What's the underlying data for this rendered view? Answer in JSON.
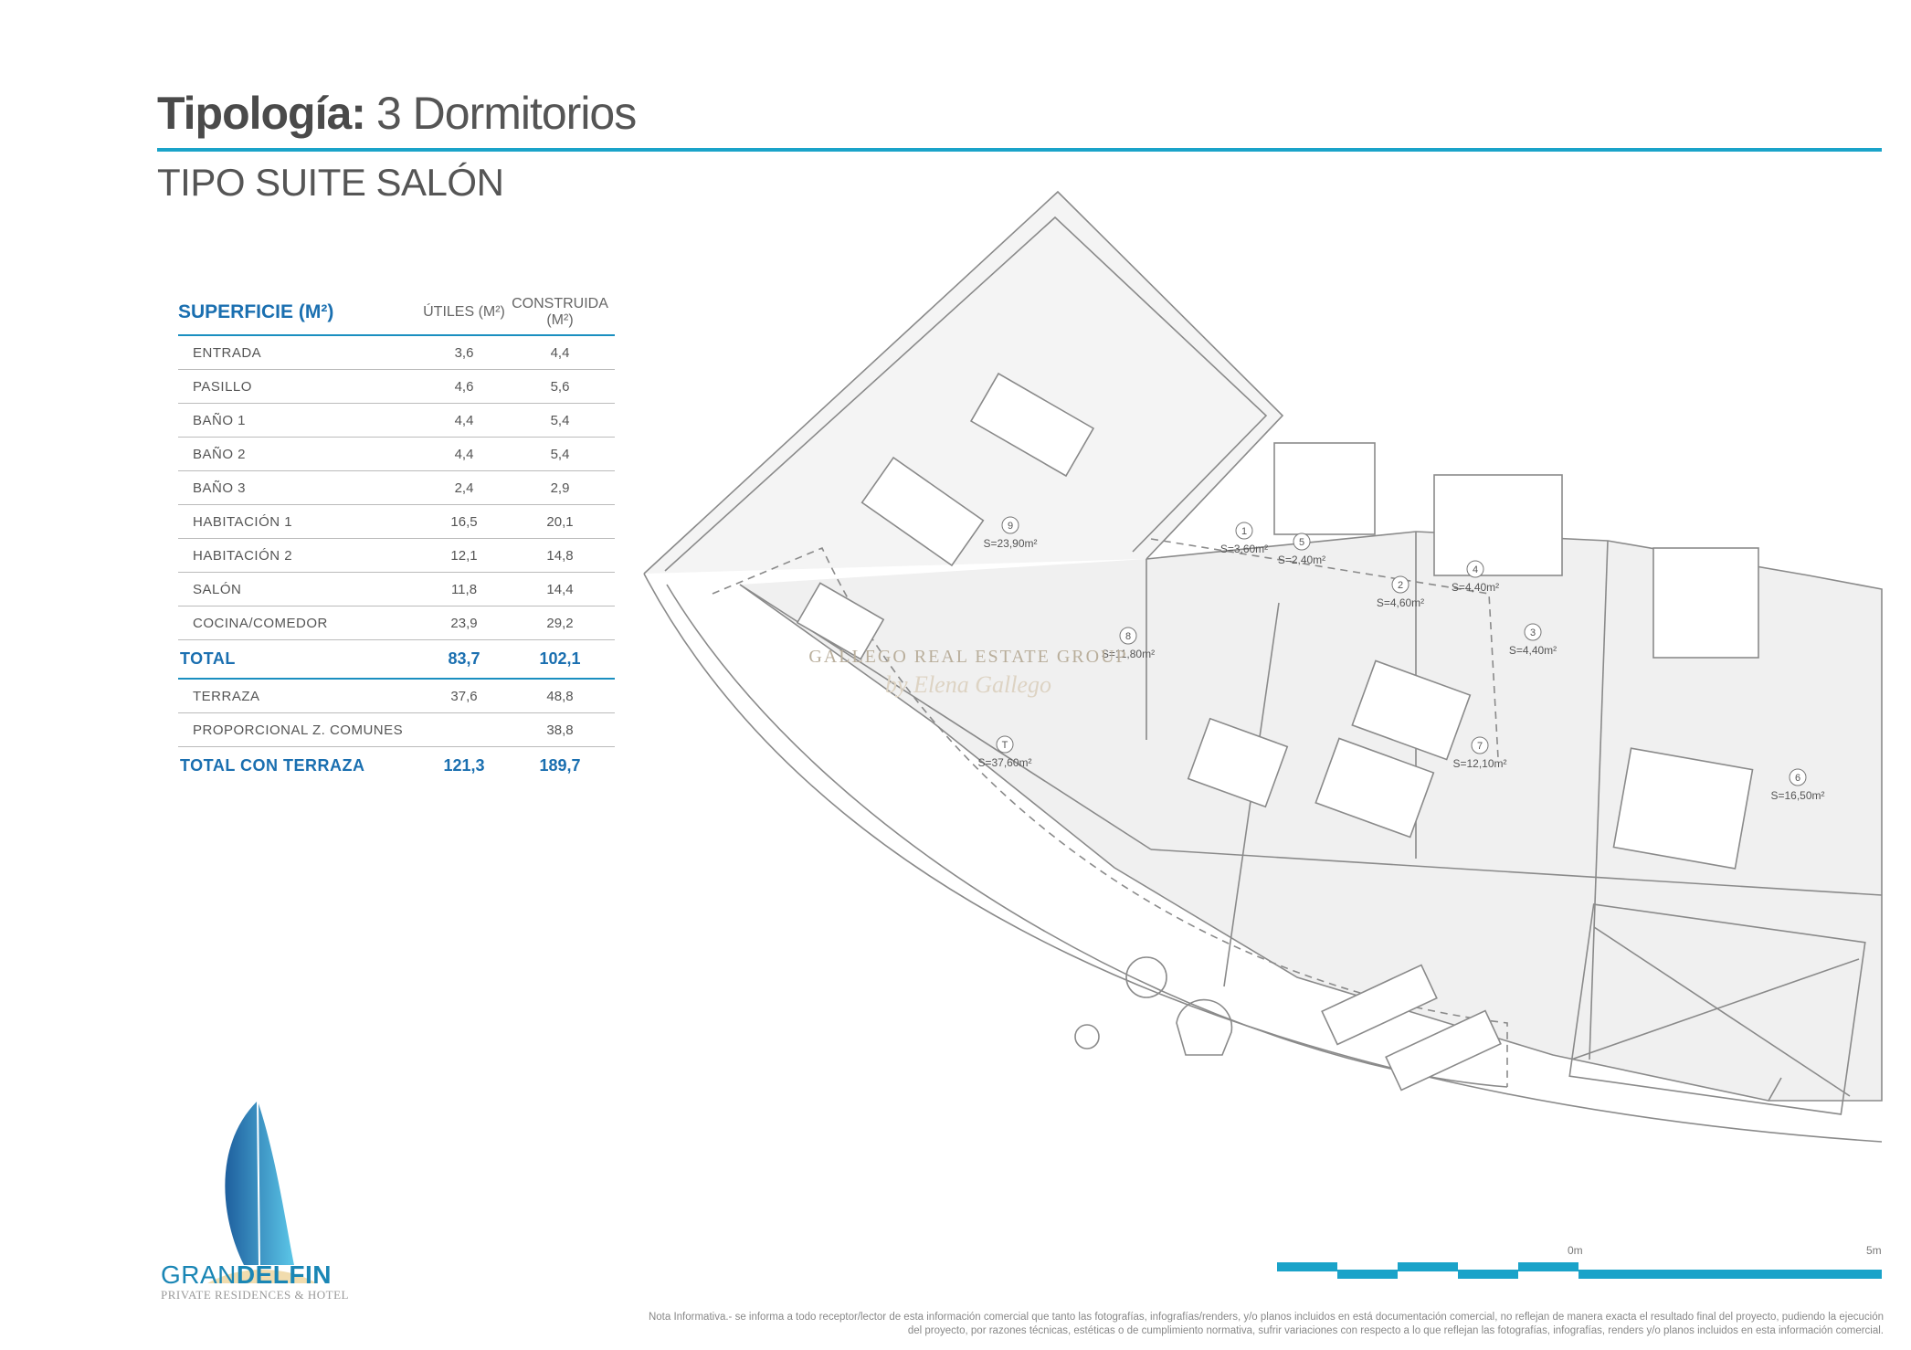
{
  "header": {
    "title_bold": "Tipología:",
    "title_light": "3 Dormitorios",
    "subtitle": "TIPO SUITE SALÓN"
  },
  "surface_table": {
    "header": {
      "label": "SUPERFICIE (M²)",
      "utiles": "ÚTILES (M²)",
      "construida": "CONSTRUIDA (M²)"
    },
    "rows": [
      {
        "label": "ENTRADA",
        "utiles": "3,6",
        "construida": "4,4"
      },
      {
        "label": "PASILLO",
        "utiles": "4,6",
        "construida": "5,6"
      },
      {
        "label": "BAÑO 1",
        "utiles": "4,4",
        "construida": "5,4"
      },
      {
        "label": "BAÑO 2",
        "utiles": "4,4",
        "construida": "5,4"
      },
      {
        "label": "BAÑO 3",
        "utiles": "2,4",
        "construida": "2,9"
      },
      {
        "label": "HABITACIÓN 1",
        "utiles": "16,5",
        "construida": "20,1"
      },
      {
        "label": "HABITACIÓN 2",
        "utiles": "12,1",
        "construida": "14,8"
      },
      {
        "label": "SALÓN",
        "utiles": "11,8",
        "construida": "14,4"
      },
      {
        "label": "COCINA/COMEDOR",
        "utiles": "23,9",
        "construida": "29,2"
      }
    ],
    "total": {
      "label": "TOTAL",
      "utiles": "83,7",
      "construida": "102,1"
    },
    "extra_rows": [
      {
        "label": "TERRAZA",
        "utiles": "37,6",
        "construida": "48,8"
      },
      {
        "label": "PROPORCIONAL Z. COMUNES",
        "utiles": "",
        "construida": "38,8"
      }
    ],
    "total_terrace": {
      "label": "TOTAL CON TERRAZA",
      "utiles": "121,3",
      "construida": "189,7"
    }
  },
  "plan": {
    "rooms": [
      {
        "num": "1",
        "area": "S=3,60m²"
      },
      {
        "num": "2",
        "area": "S=4,60m²"
      },
      {
        "num": "3",
        "area": "S=4,40m²"
      },
      {
        "num": "4",
        "area": "S=4,40m²"
      },
      {
        "num": "5",
        "area": "S=2,40m²"
      },
      {
        "num": "6",
        "area": "S=16,50m²"
      },
      {
        "num": "7",
        "area": "S=12,10m²"
      },
      {
        "num": "8",
        "area": "S=11,80m²"
      },
      {
        "num": "9",
        "area": "S=23,90m²"
      },
      {
        "num": "T",
        "area": "S=37,60m²"
      }
    ]
  },
  "watermark": {
    "line1": "GALLEGO REAL ESTATE GROUP",
    "line2": "by Elena Gallego"
  },
  "logo": {
    "name_light": "GRAN",
    "name_bold": "DELFIN",
    "tagline": "PRIVATE RESIDENCES & HOTEL"
  },
  "scale_bar": {
    "start_label": "0m",
    "end_label": "5m"
  },
  "note": "Nota Informativa.- se informa a todo receptor/lector de esta información comercial que tanto las fotografías, infografías/renders, y/o planos incluidos en está documentación comercial, no reflejan de manera exacta el resultado final del proyecto, pudiendo la ejecución del proyecto, por razones técnicas, estéticas o de cumplimiento normativa, sufrir variaciones con respecto a lo que reflejan las fotografías, infografías, renders y/o planos incluidos en esta información comercial.",
  "colors": {
    "accent": "#1aa3c9",
    "table_blue": "#1a6fb0",
    "text": "#4a4a4a"
  }
}
